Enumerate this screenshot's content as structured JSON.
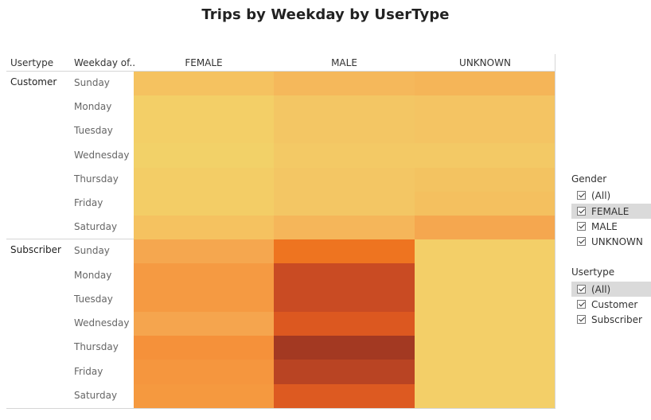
{
  "chart_data": {
    "type": "heatmap",
    "title": "Trips by Weekday by UserType",
    "row_header_1": "Usertype",
    "row_header_2": "Weekday of..",
    "columns": [
      "FEMALE",
      "MALE",
      "UNKNOWN"
    ],
    "groups": [
      {
        "name": "Customer",
        "rows": [
          {
            "day": "Sunday",
            "colors": [
              "#f5c260",
              "#f5b85b",
              "#f5b558"
            ]
          },
          {
            "day": "Monday",
            "colors": [
              "#f3cf67",
              "#f3c664",
              "#f4c463"
            ]
          },
          {
            "day": "Tuesday",
            "colors": [
              "#f3cf67",
              "#f3c664",
              "#f4c463"
            ]
          },
          {
            "day": "Wednesday",
            "colors": [
              "#f2d168",
              "#f3c965",
              "#f3c965"
            ]
          },
          {
            "day": "Thursday",
            "colors": [
              "#f3cd66",
              "#f3c664",
              "#f3c361"
            ]
          },
          {
            "day": "Friday",
            "colors": [
              "#f3cd66",
              "#f3c664",
              "#f4c05f"
            ]
          },
          {
            "day": "Saturday",
            "colors": [
              "#f5c260",
              "#f5b65a",
              "#f5a74f"
            ]
          }
        ]
      },
      {
        "name": "Subscriber",
        "rows": [
          {
            "day": "Sunday",
            "colors": [
              "#f5a74f",
              "#ee7420",
              "#f3cf68"
            ]
          },
          {
            "day": "Monday",
            "colors": [
              "#f59a42",
              "#c94b23",
              "#f3cf68"
            ]
          },
          {
            "day": "Tuesday",
            "colors": [
              "#f59a42",
              "#c94b23",
              "#f3cf68"
            ]
          },
          {
            "day": "Wednesday",
            "colors": [
              "#f5a54e",
              "#dc5820",
              "#f3cf68"
            ]
          },
          {
            "day": "Thursday",
            "colors": [
              "#f5913a",
              "#a33922",
              "#f3cf68"
            ]
          },
          {
            "day": "Friday",
            "colors": [
              "#f5963e",
              "#b94423",
              "#f3cf68"
            ]
          },
          {
            "day": "Saturday",
            "colors": [
              "#f5993f",
              "#dd5a21",
              "#f3cf68"
            ]
          }
        ]
      }
    ]
  },
  "filters": {
    "gender": {
      "title": "Gender",
      "items": [
        {
          "label": "(All)",
          "checked": true,
          "highlight": false
        },
        {
          "label": "FEMALE",
          "checked": true,
          "highlight": true
        },
        {
          "label": "MALE",
          "checked": true,
          "highlight": false
        },
        {
          "label": "UNKNOWN",
          "checked": true,
          "highlight": false
        }
      ]
    },
    "usertype": {
      "title": "Usertype",
      "items": [
        {
          "label": "(All)",
          "checked": true,
          "highlight": true
        },
        {
          "label": "Customer",
          "checked": true,
          "highlight": false
        },
        {
          "label": "Subscriber",
          "checked": true,
          "highlight": false
        }
      ]
    }
  }
}
